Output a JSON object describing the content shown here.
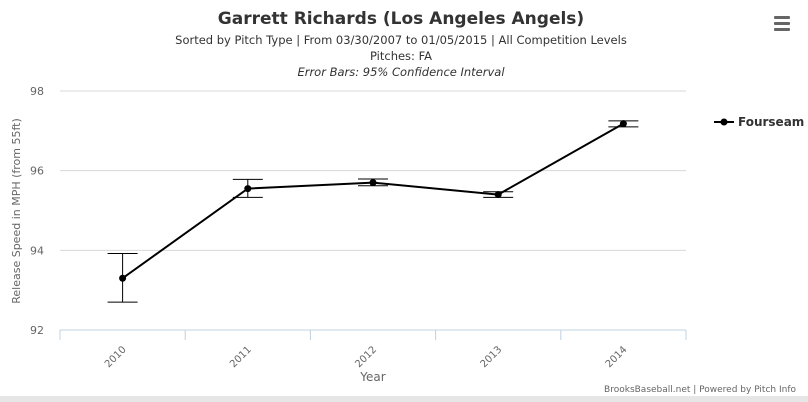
{
  "colors": {
    "series": "#000000",
    "grid": "#d8d8d8",
    "axis": "#c0d0e0",
    "text": "#333333",
    "muted": "#666666"
  },
  "menu": {
    "icon": "hamburger-menu-icon"
  },
  "chart_data": {
    "type": "line",
    "title": "Garrett Richards (Los Angeles Angels)",
    "subtitle_lines": [
      "Sorted by Pitch Type | From 03/30/2007 to 01/05/2015 | All Competition Levels",
      "Pitches: FA",
      "Error Bars: 95% Confidence Interval"
    ],
    "xlabel": "Year",
    "ylabel": "Release Speed in MPH (from 55ft)",
    "categories": [
      "2010",
      "2011",
      "2012",
      "2013",
      "2014"
    ],
    "ylim": [
      92,
      98
    ],
    "yticks": [
      "92",
      "94",
      "96",
      "98"
    ],
    "grid": true,
    "legend_position": "right",
    "series": [
      {
        "name": "Fourseam",
        "values": [
          93.3,
          95.55,
          95.7,
          95.4,
          97.18
        ],
        "error_low": [
          92.7,
          95.33,
          95.62,
          95.33,
          97.1
        ],
        "error_high": [
          93.92,
          95.78,
          95.79,
          95.47,
          97.25
        ]
      }
    ],
    "credits": "BrooksBaseball.net | Powered by Pitch Info"
  }
}
